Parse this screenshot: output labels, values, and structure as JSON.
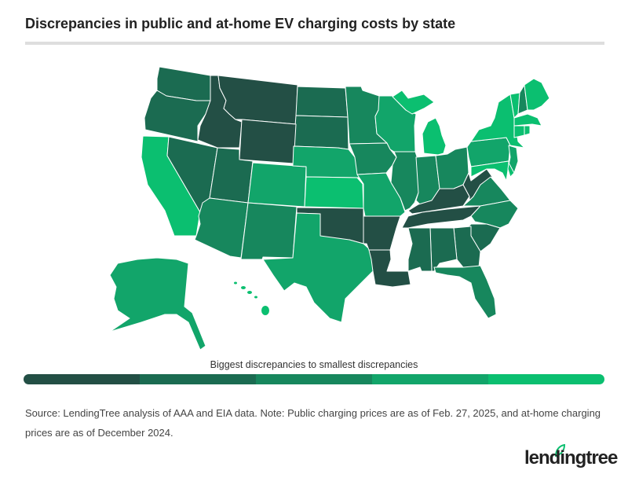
{
  "title": "Discrepancies in public and at-home EV charging costs by state",
  "legend": {
    "label": "Biggest discrepancies to smallest discrepancies",
    "colors": [
      "#234f45",
      "#1b6b51",
      "#17875d",
      "#12a56a",
      "#0bbf70"
    ]
  },
  "map_data": {
    "type": "choropleth",
    "scale": "tier 1 = biggest discrepancy, tier 5 = smallest discrepancy",
    "tiers": {
      "WA": 2,
      "OR": 2,
      "CA": 5,
      "NV": 2,
      "ID": 1,
      "MT": 1,
      "WY": 1,
      "UT": 2,
      "AZ": 3,
      "CO": 4,
      "NM": 3,
      "ND": 2,
      "SD": 2,
      "NE": 4,
      "KS": 5,
      "OK": 1,
      "TX": 4,
      "MN": 3,
      "IA": 3,
      "MO": 4,
      "AR": 1,
      "LA": 1,
      "WI": 4,
      "IL": 3,
      "MI": 5,
      "IN": 3,
      "OH": 3,
      "KY": 1,
      "TN": 1,
      "MS": 2,
      "AL": 2,
      "GA": 2,
      "FL": 3,
      "SC": 2,
      "NC": 3,
      "VA": 3,
      "WV": 1,
      "PA": 4,
      "NY": 5,
      "NJ": 4,
      "DE": 5,
      "MD": 5,
      "VT": 5,
      "NH": 3,
      "ME": 5,
      "MA": 5,
      "CT": 5,
      "RI": 5,
      "AK": 4,
      "HI": 5
    }
  },
  "footer": {
    "source": "Source: LendingTree analysis of AAA and EIA data. Note: Public charging prices are as of Feb. 27, 2025, and at-home charging prices are as of December 2024.",
    "logo": "lendingtree"
  }
}
